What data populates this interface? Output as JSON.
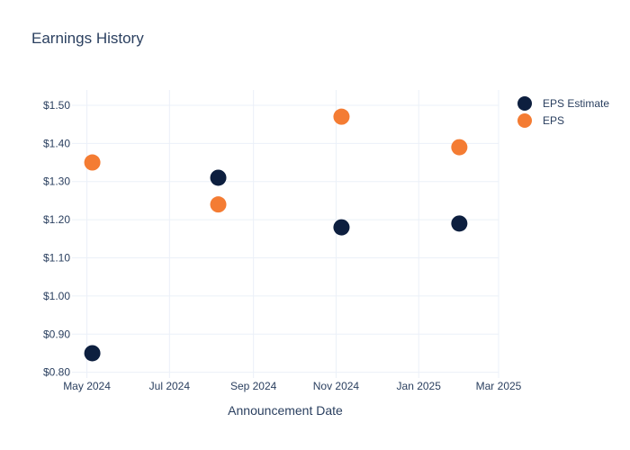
{
  "chart_data": {
    "type": "scatter",
    "title": "Earnings History",
    "xlabel": "Announcement Date",
    "ylabel": "",
    "x_ticks": [
      {
        "date": "2024-05-01",
        "label": "May 2024"
      },
      {
        "date": "2024-07-01",
        "label": "Jul 2024"
      },
      {
        "date": "2024-09-01",
        "label": "Sep 2024"
      },
      {
        "date": "2024-11-01",
        "label": "Nov 2024"
      },
      {
        "date": "2025-01-01",
        "label": "Jan 2025"
      },
      {
        "date": "2025-03-01",
        "label": "Mar 2025"
      }
    ],
    "y_ticks": [
      {
        "value": 0.8,
        "label": "$0.80"
      },
      {
        "value": 0.9,
        "label": "$0.90"
      },
      {
        "value": 1.0,
        "label": "$1.00"
      },
      {
        "value": 1.1,
        "label": "$1.10"
      },
      {
        "value": 1.2,
        "label": "$1.20"
      },
      {
        "value": 1.3,
        "label": "$1.30"
      },
      {
        "value": 1.4,
        "label": "$1.40"
      },
      {
        "value": 1.5,
        "label": "$1.50"
      }
    ],
    "xlim": [
      "2024-04-20",
      "2025-03-01"
    ],
    "ylim": [
      0.785,
      1.54
    ],
    "grid": true,
    "legend_position": "top-right",
    "series": [
      {
        "name": "EPS Estimate",
        "color": "#0d1f3f",
        "points": [
          {
            "x": "2024-05-05",
            "y": 0.85
          },
          {
            "x": "2024-08-06",
            "y": 1.31
          },
          {
            "x": "2024-11-05",
            "y": 1.18
          },
          {
            "x": "2025-01-31",
            "y": 1.19
          }
        ]
      },
      {
        "name": "EPS",
        "color": "#f47c33",
        "points": [
          {
            "x": "2024-05-05",
            "y": 1.35
          },
          {
            "x": "2024-08-06",
            "y": 1.24
          },
          {
            "x": "2024-11-05",
            "y": 1.47
          },
          {
            "x": "2025-01-31",
            "y": 1.39
          }
        ]
      }
    ]
  }
}
